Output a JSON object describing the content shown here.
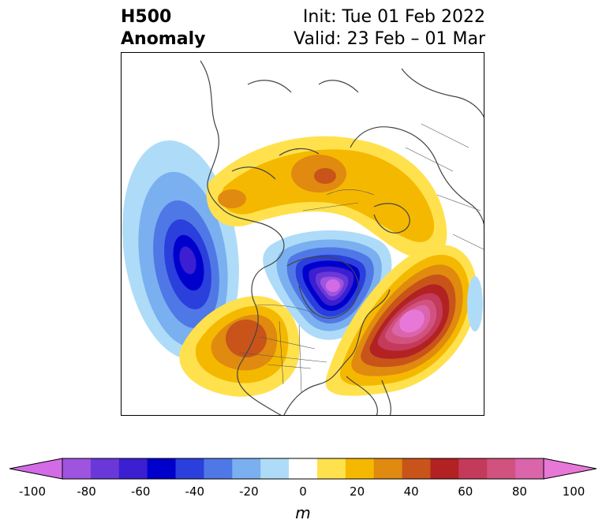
{
  "title": {
    "left_line1": "H500",
    "left_line2": "Anomaly",
    "right_line1": "Init: Tue 01 Feb 2022",
    "right_line2": "Valid: 23 Feb – 01 Mar"
  },
  "colorbar": {
    "unit_label": "m",
    "levels": [
      -100,
      -90,
      -80,
      -70,
      -60,
      -50,
      -40,
      -30,
      -20,
      -10,
      10,
      20,
      30,
      40,
      50,
      60,
      70,
      80,
      90,
      100
    ],
    "tick_labels": [
      "-100",
      "-80",
      "-60",
      "-40",
      "-20",
      "0",
      "20",
      "40",
      "60",
      "80",
      "100"
    ],
    "tick_values": [
      -100,
      -80,
      -60,
      -40,
      -20,
      0,
      20,
      40,
      60,
      80,
      100
    ],
    "colors": [
      "#d36be6",
      "#9f54e0",
      "#6a38d8",
      "#3b1fd0",
      "#0000cc",
      "#2a3fdc",
      "#4f78e6",
      "#7ab0f0",
      "#aedcf8",
      "#ffffff",
      "#ffe14d",
      "#f5b800",
      "#e08a10",
      "#c8541a",
      "#b22222",
      "#c43a5a",
      "#d2527f",
      "#da65ab",
      "#e878d8"
    ],
    "extend": "both"
  },
  "map": {
    "projection": "north-polar-stereographic",
    "region": "Northern Hemisphere centered on North America",
    "features": [
      {
        "name": "trough-north-pacific",
        "sign": "negative",
        "peak_m": -70
      },
      {
        "name": "ridge-arctic-siberia",
        "sign": "positive",
        "peak_m": 40
      },
      {
        "name": "trough-hudson-bay",
        "sign": "negative",
        "peak_m": -100
      },
      {
        "name": "ridge-western-us",
        "sign": "positive",
        "peak_m": 50
      },
      {
        "name": "ridge-north-atlantic",
        "sign": "positive",
        "peak_m": 100
      }
    ]
  }
}
